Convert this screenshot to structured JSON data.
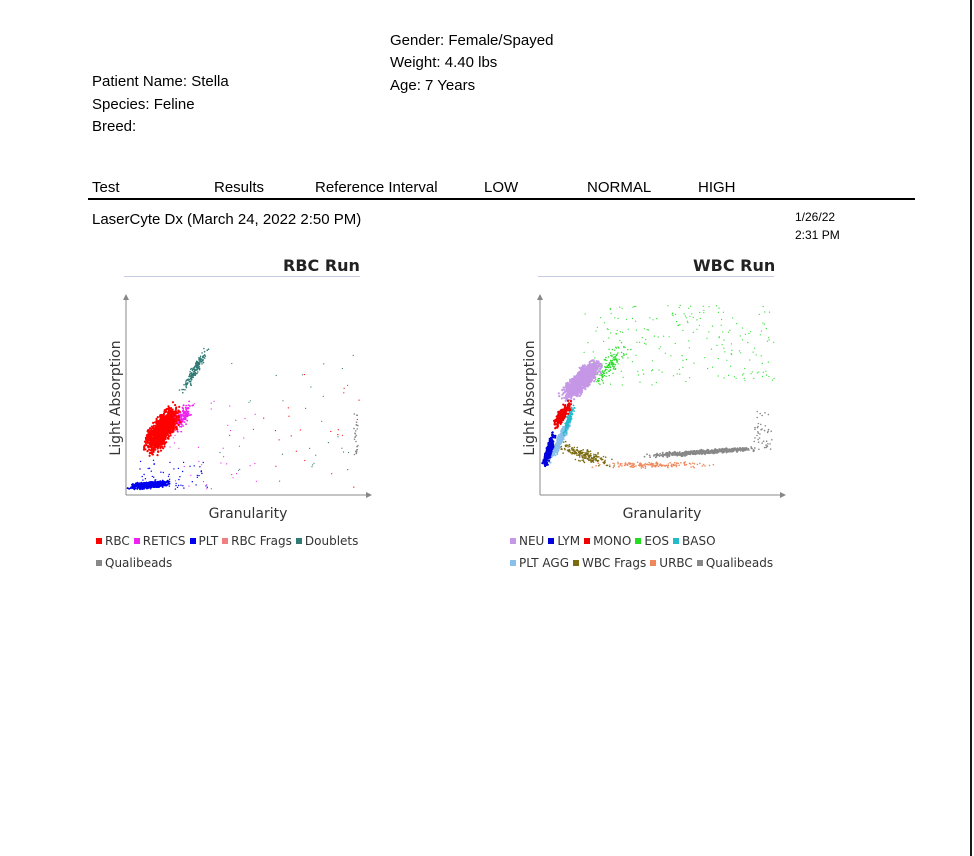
{
  "patient": {
    "gender": "Gender: Female/Spayed",
    "weight": "Weight: 4.40 lbs",
    "age": "Age: 7 Years",
    "name": "Patient Name: Stella",
    "species": "Species: Feline",
    "breed": "Breed:"
  },
  "table_header": {
    "test": "Test",
    "results": "Results",
    "reference": "Reference Interval",
    "low": "LOW",
    "normal": "NORMAL",
    "high": "HIGH"
  },
  "run": {
    "title": "LaserCyte Dx (March 24, 2022 2:50 PM)",
    "date": "1/26/22",
    "time": "2:31 PM"
  },
  "chart_data": [
    {
      "type": "scatter",
      "title": "RBC Run",
      "xlabel": "Granularity",
      "ylabel": "Light Absorption",
      "series": [
        {
          "name": "RBC",
          "color": "#ff0000"
        },
        {
          "name": "RETICS",
          "color": "#ee22ee"
        },
        {
          "name": "PLT",
          "color": "#0000ee"
        },
        {
          "name": "RBC Frags",
          "color": "#f08080"
        },
        {
          "name": "Doublets",
          "color": "#2f7a74"
        },
        {
          "name": "Qualibeads",
          "color": "#888888"
        }
      ]
    },
    {
      "type": "scatter",
      "title": "WBC Run",
      "xlabel": "Granularity",
      "ylabel": "Light Absorption",
      "series": [
        {
          "name": "NEU",
          "color": "#c597e6"
        },
        {
          "name": "LYM",
          "color": "#0000dd"
        },
        {
          "name": "MONO",
          "color": "#ee0000"
        },
        {
          "name": "EOS",
          "color": "#22dd22"
        },
        {
          "name": "BASO",
          "color": "#22bbcc"
        },
        {
          "name": "PLT AGG",
          "color": "#88c0ea"
        },
        {
          "name": "WBC Frags",
          "color": "#7a6b10"
        },
        {
          "name": "URBC",
          "color": "#f0875a"
        },
        {
          "name": "Qualibeads",
          "color": "#888888"
        }
      ]
    }
  ]
}
